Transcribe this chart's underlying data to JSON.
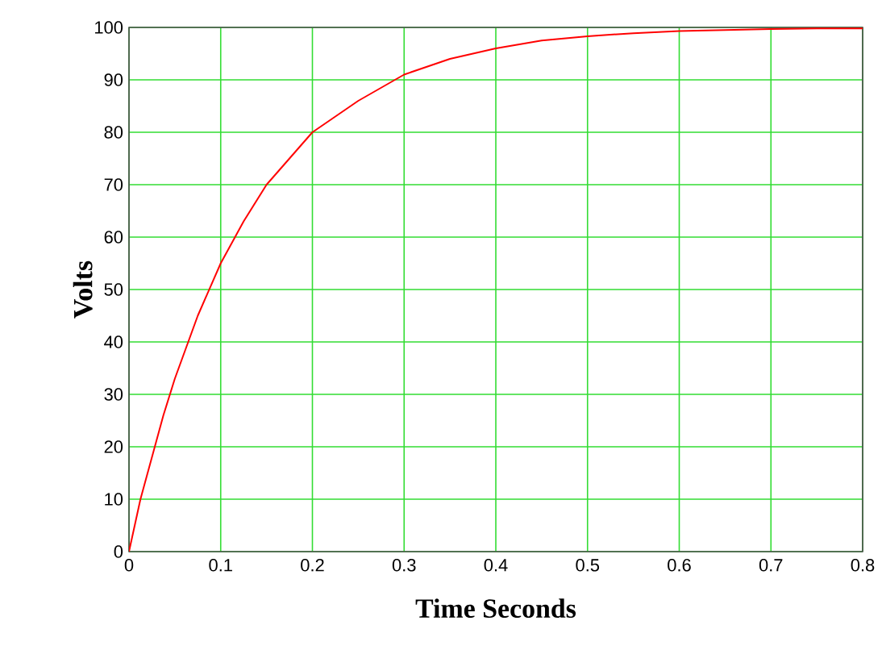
{
  "chart_data": {
    "type": "line",
    "xlabel": "Time Seconds",
    "ylabel": "Volts",
    "xlim": [
      0,
      0.8
    ],
    "ylim": [
      0,
      100
    ],
    "xticks": [
      0,
      0.1,
      0.2,
      0.3,
      0.4,
      0.5,
      0.6,
      0.7,
      0.8
    ],
    "yticks": [
      0,
      10,
      20,
      30,
      40,
      50,
      60,
      70,
      80,
      90,
      100
    ],
    "grid": true,
    "marker": "none",
    "line_style": "solid",
    "series": [
      {
        "color": "#ff0000",
        "x": [
          0,
          0.0125,
          0.025,
          0.0375,
          0.05,
          0.075,
          0.1,
          0.125,
          0.15,
          0.175,
          0.2,
          0.25,
          0.3,
          0.35,
          0.4,
          0.45,
          0.5,
          0.55,
          0.6,
          0.65,
          0.7,
          0.75,
          0.8
        ],
        "values": [
          0,
          10,
          18,
          26,
          33,
          45,
          55,
          63,
          70,
          75,
          80,
          86,
          91,
          94,
          96,
          97.5,
          98.3,
          98.9,
          99.3,
          99.5,
          99.7,
          99.8,
          99.8
        ]
      }
    ]
  }
}
